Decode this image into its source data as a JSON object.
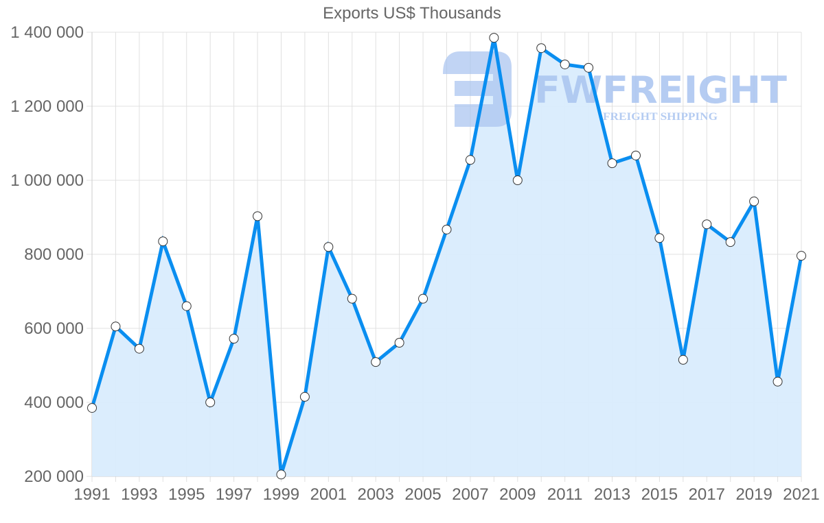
{
  "chart_data": {
    "type": "area",
    "title": "Exports US$ Thousands",
    "xlabel": "",
    "ylabel": "",
    "x": [
      1991,
      1992,
      1993,
      1994,
      1995,
      1996,
      1997,
      1998,
      1999,
      2000,
      2001,
      2002,
      2003,
      2004,
      2005,
      2006,
      2007,
      2008,
      2009,
      2010,
      2011,
      2012,
      2013,
      2014,
      2015,
      2016,
      2017,
      2018,
      2019,
      2020,
      2021
    ],
    "series": [
      {
        "name": "Exports US$ Thousands",
        "values": [
          385000,
          605000,
          545000,
          835000,
          660000,
          400000,
          572000,
          903000,
          205000,
          415000,
          820000,
          680000,
          509000,
          561000,
          680000,
          867000,
          1055000,
          1385000,
          1000000,
          1357000,
          1313000,
          1304000,
          1046000,
          1067000,
          844000,
          515000,
          881000,
          833000,
          943000,
          456000,
          796000
        ]
      }
    ],
    "ylim": [
      200000,
      1400000
    ],
    "yticks": [
      200000,
      400000,
      600000,
      800000,
      1000000,
      1200000,
      1400000
    ],
    "ytick_labels": [
      "200 000",
      "400 000",
      "600 000",
      "800 000",
      "1 000 000",
      "1 200 000",
      "1 400 000"
    ],
    "xtick_labels": [
      "1991",
      "1993",
      "1995",
      "1997",
      "1999",
      "2001",
      "2003",
      "2005",
      "2007",
      "2009",
      "2011",
      "2013",
      "2015",
      "2017",
      "2019",
      "2021"
    ],
    "grid": true,
    "legend": "none",
    "colors": {
      "line": "#0a8ef0",
      "fill": "#d9ecfd",
      "marker_fill": "#ffffff",
      "marker_stroke": "#333333",
      "grid": "#e0e0e0",
      "text": "#666666"
    }
  },
  "watermark": {
    "brand": "FWFREIGHT",
    "tagline": "FREIGHT SHIPPING",
    "color": "#a9c4f0"
  }
}
